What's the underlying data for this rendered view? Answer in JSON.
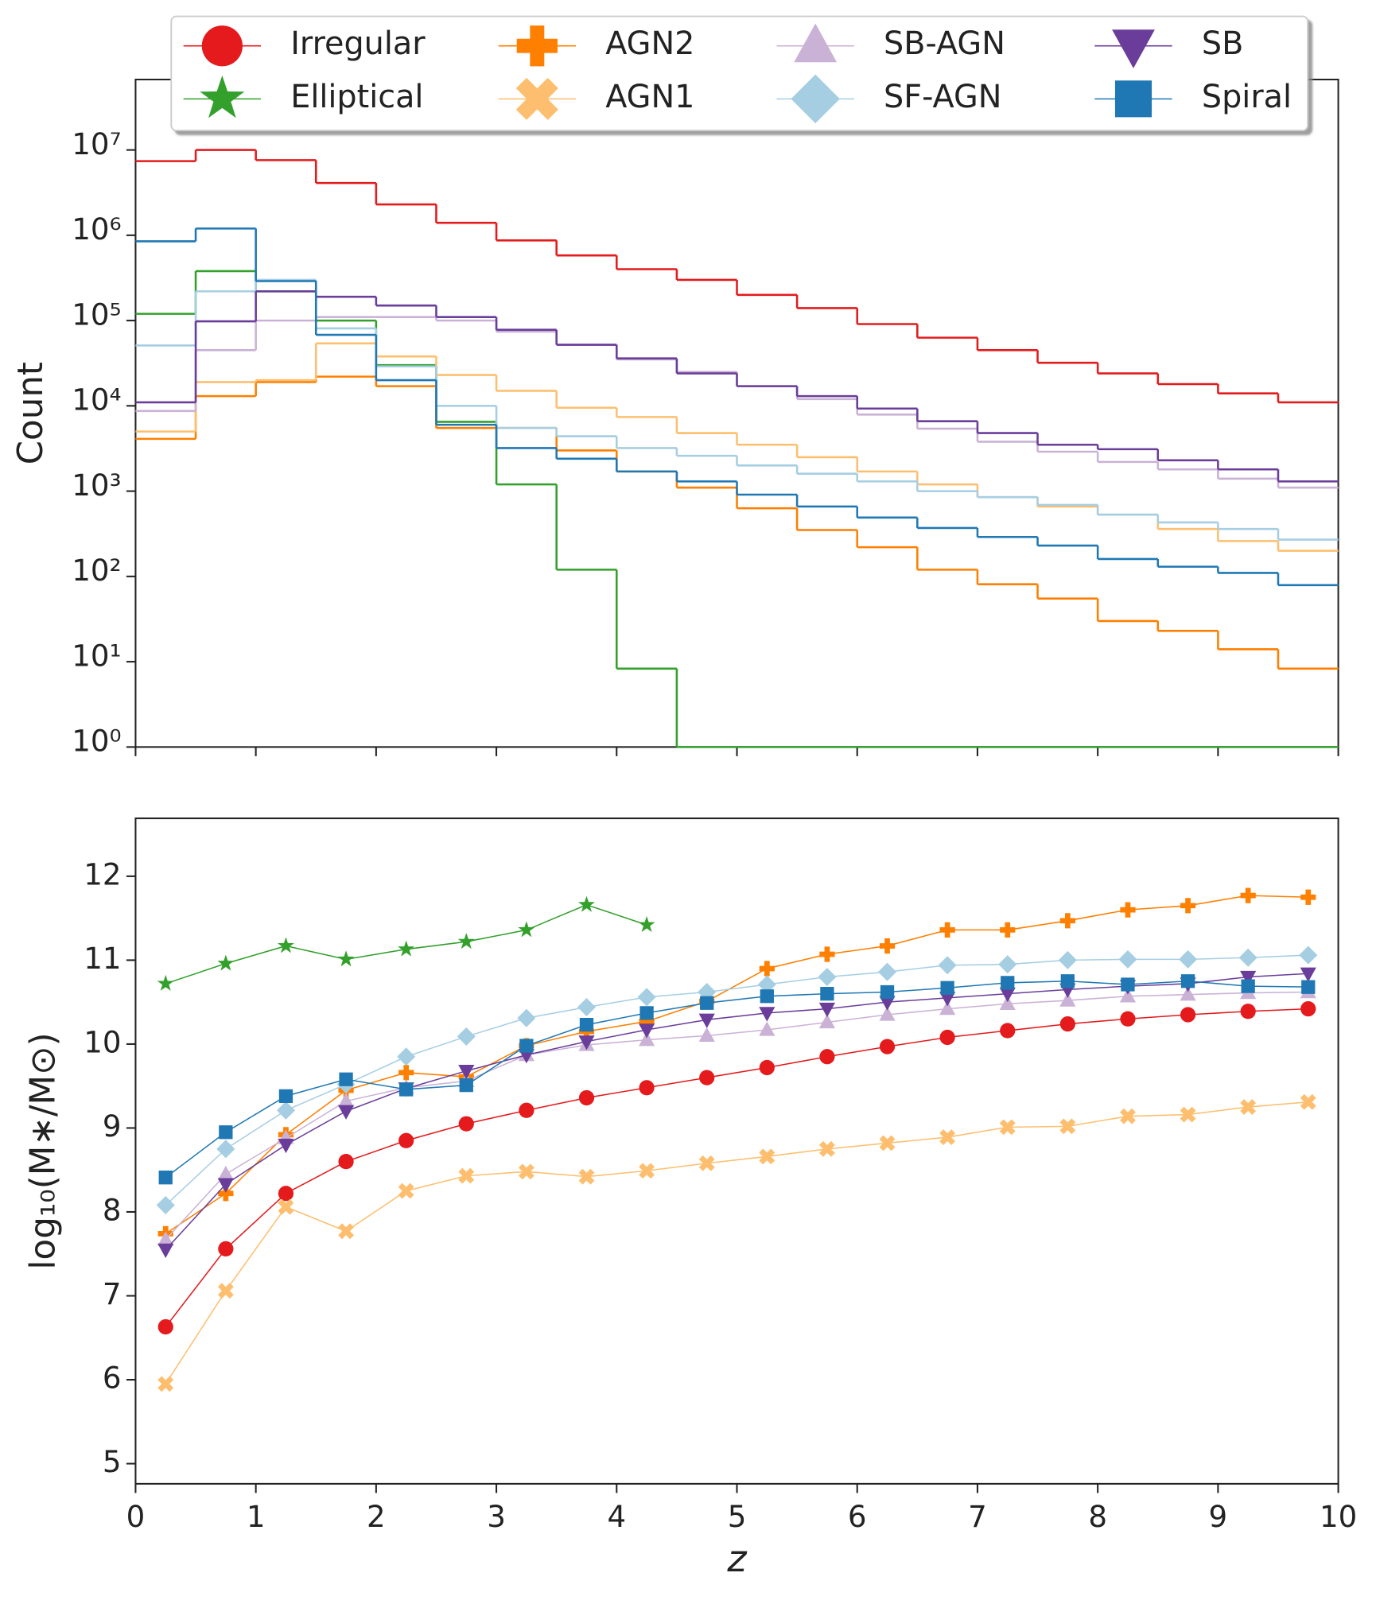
{
  "chart_data": [
    {
      "type": "histogram",
      "ylabel": "Count",
      "log_y": true,
      "bins": [
        0,
        0.5,
        1,
        1.5,
        2,
        2.5,
        3,
        3.5,
        4,
        4.5,
        5,
        5.5,
        6,
        6.5,
        7,
        7.5,
        8,
        8.5,
        9,
        9.5,
        10
      ],
      "xlim": [
        0,
        10
      ],
      "ylim": [
        1,
        67000000
      ],
      "yticks": [
        {
          "value": 1,
          "label": "10⁰"
        },
        {
          "value": 10,
          "label": "10¹"
        },
        {
          "value": 100,
          "label": "10²"
        },
        {
          "value": 1000,
          "label": "10³"
        },
        {
          "value": 10000,
          "label": "10⁴"
        },
        {
          "value": 100000,
          "label": "10⁵"
        },
        {
          "value": 1000000,
          "label": "10⁶"
        },
        {
          "value": 10000000,
          "label": "10⁷"
        }
      ],
      "legend": "upper center",
      "series": [
        {
          "name": "Irregular",
          "color": "#e41a1c",
          "marker": "circle",
          "values": [
            7400000,
            10000000,
            7600000,
            4100000,
            2300000,
            1400000,
            870000,
            580000,
            400000,
            300000,
            200000,
            140000,
            91000,
            63000,
            45000,
            32000,
            24000,
            18000,
            14000,
            11000
          ]
        },
        {
          "name": "Elliptical",
          "color": "#33a02c",
          "marker": "star",
          "values": [
            120000,
            380000,
            220000,
            100000,
            30000,
            6500,
            1200,
            120,
            8.3,
            0,
            0,
            0,
            0,
            0,
            0,
            0,
            0,
            0,
            0,
            0
          ]
        },
        {
          "name": "AGN2",
          "color": "#ff7f00",
          "marker": "plus",
          "values": [
            4100,
            13000,
            19000,
            22000,
            17000,
            5500,
            5500,
            3000,
            1700,
            1100,
            630,
            350,
            220,
            120,
            81,
            55,
            30,
            23,
            14,
            8.3
          ]
        },
        {
          "name": "AGN1",
          "color": "#fdbf6f",
          "marker": "x",
          "values": [
            5000,
            19000,
            20000,
            54000,
            38000,
            23000,
            15000,
            9500,
            7400,
            4800,
            3500,
            2500,
            1700,
            1200,
            850,
            660,
            530,
            360,
            260,
            200
          ]
        },
        {
          "name": "SB-AGN",
          "color": "#cab2d6",
          "marker": "triangle-up",
          "values": [
            8700,
            45000,
            100000,
            110000,
            110000,
            100000,
            74000,
            52000,
            35000,
            25000,
            17000,
            12000,
            7900,
            5400,
            3800,
            2900,
            2200,
            1800,
            1400,
            1100
          ]
        },
        {
          "name": "SF-AGN",
          "color": "#a6cee3",
          "marker": "diamond",
          "values": [
            51000,
            220000,
            300000,
            81000,
            29000,
            10000,
            5500,
            4400,
            3200,
            2600,
            2000,
            1600,
            1300,
            1000,
            850,
            690,
            530,
            430,
            360,
            270
          ]
        },
        {
          "name": "SB",
          "color": "#6a3d9a",
          "marker": "triangle-down",
          "values": [
            11000,
            98000,
            220000,
            190000,
            150000,
            110000,
            78000,
            52000,
            36000,
            24000,
            17000,
            13000,
            9300,
            6600,
            4800,
            3500,
            3100,
            2300,
            1800,
            1300
          ]
        },
        {
          "name": "Spiral",
          "color": "#1f78b4",
          "marker": "square",
          "values": [
            850000,
            1200000,
            290000,
            68000,
            20000,
            6000,
            3200,
            2400,
            1700,
            1300,
            910,
            660,
            490,
            370,
            290,
            230,
            160,
            130,
            110,
            79
          ]
        }
      ]
    },
    {
      "type": "line",
      "xlabel": "z",
      "ylabel": "log₁₀(M∗/M⊙)",
      "x": [
        0.25,
        0.75,
        1.25,
        1.75,
        2.25,
        2.75,
        3.25,
        3.75,
        4.25,
        4.75,
        5.25,
        5.75,
        6.25,
        6.75,
        7.25,
        7.75,
        8.25,
        8.75,
        9.25,
        9.75
      ],
      "xlim": [
        0,
        10
      ],
      "ylim": [
        4.76,
        12.69
      ],
      "xticks": [
        0,
        1,
        2,
        3,
        4,
        5,
        6,
        7,
        8,
        9,
        10
      ],
      "yticks": [
        5,
        6,
        7,
        8,
        9,
        10,
        11,
        12
      ],
      "series": [
        {
          "color": "#e41a1c",
          "marker": "circle",
          "values": [
            6.63,
            7.56,
            8.22,
            8.6,
            8.85,
            9.05,
            9.21,
            9.36,
            9.48,
            9.6,
            9.72,
            9.85,
            9.97,
            10.08,
            10.16,
            10.24,
            10.3,
            10.35,
            10.39,
            10.42
          ]
        },
        {
          "color": "#33a02c",
          "marker": "star",
          "values": [
            10.72,
            10.96,
            11.17,
            11.01,
            11.13,
            11.22,
            11.36,
            11.66,
            11.42,
            null,
            null,
            null,
            null,
            null,
            null,
            null,
            null,
            null,
            null,
            null
          ]
        },
        {
          "color": "#ff7f00",
          "marker": "plus",
          "values": [
            7.74,
            8.22,
            8.92,
            9.45,
            9.66,
            9.61,
            9.98,
            10.15,
            10.27,
            10.51,
            10.9,
            11.07,
            11.17,
            11.36,
            11.36,
            11.47,
            11.6,
            11.65,
            11.77,
            11.75
          ]
        },
        {
          "color": "#fdbf6f",
          "marker": "x",
          "values": [
            5.95,
            7.06,
            8.06,
            7.77,
            8.25,
            8.43,
            8.48,
            8.42,
            8.49,
            8.58,
            8.66,
            8.75,
            8.82,
            8.89,
            9.01,
            9.02,
            9.14,
            9.16,
            9.25,
            9.31
          ]
        },
        {
          "color": "#cab2d6",
          "marker": "triangle-up",
          "values": [
            7.67,
            8.45,
            8.88,
            9.32,
            9.48,
            9.56,
            9.87,
            9.99,
            10.05,
            10.1,
            10.17,
            10.26,
            10.35,
            10.42,
            10.48,
            10.52,
            10.57,
            10.59,
            10.61,
            10.62
          ]
        },
        {
          "color": "#a6cee3",
          "marker": "diamond",
          "values": [
            8.08,
            8.75,
            9.21,
            9.52,
            9.85,
            10.09,
            10.31,
            10.44,
            10.56,
            10.62,
            10.71,
            10.8,
            10.86,
            10.94,
            10.95,
            11.0,
            11.01,
            11.01,
            11.03,
            11.06
          ]
        },
        {
          "color": "#6a3d9a",
          "marker": "triangle-down",
          "values": [
            7.55,
            8.33,
            8.8,
            9.2,
            9.47,
            9.68,
            9.87,
            10.03,
            10.17,
            10.29,
            10.37,
            10.42,
            10.5,
            10.55,
            10.6,
            10.65,
            10.69,
            10.72,
            10.8,
            10.84
          ]
        },
        {
          "color": "#1f78b4",
          "marker": "square",
          "values": [
            8.41,
            8.95,
            9.38,
            9.58,
            9.46,
            9.51,
            9.98,
            10.23,
            10.37,
            10.49,
            10.57,
            10.6,
            10.62,
            10.67,
            10.73,
            10.75,
            10.71,
            10.75,
            10.69,
            10.68
          ]
        }
      ]
    }
  ]
}
